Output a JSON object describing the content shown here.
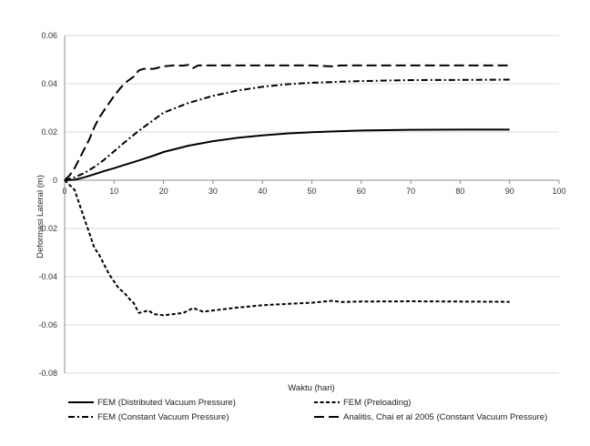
{
  "chart_data": {
    "type": "line",
    "title": "",
    "xlabel": "Waktu (hari)",
    "ylabel": "Deformasi Lateral (m)",
    "xlim": [
      0,
      100
    ],
    "ylim": [
      -0.08,
      0.06
    ],
    "x_ticks": [
      0,
      10,
      20,
      30,
      40,
      50,
      60,
      70,
      80,
      90,
      100
    ],
    "y_ticks": [
      -0.08,
      -0.06,
      -0.04,
      -0.02,
      0,
      0.02,
      0.04,
      0.06
    ],
    "x_tick_labels": [
      "0",
      "10",
      "20",
      "30",
      "40",
      "50",
      "60",
      "70",
      "80",
      "90",
      "100"
    ],
    "y_tick_labels": [
      "-0.08",
      "-0.06",
      "-0.04",
      "-0.02",
      "0",
      "0.02",
      "0.04",
      "0.06"
    ],
    "grid": "horizontal",
    "legend_position": "bottom",
    "series": [
      {
        "name": "FEM  (Distributed Vacuum Pressure)",
        "style": "solid",
        "points": [
          [
            0,
            0
          ],
          [
            2,
            0.0002
          ],
          [
            4,
            0.0012
          ],
          [
            6,
            0.0025
          ],
          [
            8,
            0.0038
          ],
          [
            10,
            0.005
          ],
          [
            12,
            0.0063
          ],
          [
            15,
            0.0082
          ],
          [
            18,
            0.0102
          ],
          [
            20,
            0.0117
          ],
          [
            25,
            0.0143
          ],
          [
            30,
            0.0162
          ],
          [
            35,
            0.0176
          ],
          [
            40,
            0.0186
          ],
          [
            45,
            0.0194
          ],
          [
            50,
            0.0199
          ],
          [
            55,
            0.0203
          ],
          [
            60,
            0.0206
          ],
          [
            70,
            0.0209
          ],
          [
            80,
            0.021
          ],
          [
            90,
            0.021
          ]
        ]
      },
      {
        "name": "FEM  (Preloading)",
        "style": "dashed",
        "points": [
          [
            0,
            0
          ],
          [
            2,
            -0.004
          ],
          [
            3,
            -0.01
          ],
          [
            4,
            -0.016
          ],
          [
            5,
            -0.022
          ],
          [
            6,
            -0.028
          ],
          [
            7,
            -0.031
          ],
          [
            8,
            -0.035
          ],
          [
            9,
            -0.039
          ],
          [
            10,
            -0.042
          ],
          [
            11,
            -0.045
          ],
          [
            12,
            -0.0465
          ],
          [
            13,
            -0.049
          ],
          [
            14,
            -0.051
          ],
          [
            15,
            -0.055
          ],
          [
            17,
            -0.054
          ],
          [
            18,
            -0.0555
          ],
          [
            20,
            -0.056
          ],
          [
            22,
            -0.0555
          ],
          [
            24,
            -0.055
          ],
          [
            26,
            -0.053
          ],
          [
            28,
            -0.0545
          ],
          [
            30,
            -0.054
          ],
          [
            35,
            -0.0528
          ],
          [
            40,
            -0.0518
          ],
          [
            45,
            -0.0513
          ],
          [
            50,
            -0.0508
          ],
          [
            54,
            -0.05
          ],
          [
            56,
            -0.0505
          ],
          [
            60,
            -0.0503
          ],
          [
            70,
            -0.0502
          ],
          [
            80,
            -0.0503
          ],
          [
            90,
            -0.0504
          ]
        ]
      },
      {
        "name": "FEM  (Constant Vacuum Pressure)",
        "style": "dash-dot",
        "points": [
          [
            0,
            0
          ],
          [
            2,
            0.0012
          ],
          [
            4,
            0.003
          ],
          [
            6,
            0.0055
          ],
          [
            8,
            0.0085
          ],
          [
            10,
            0.012
          ],
          [
            12,
            0.0155
          ],
          [
            15,
            0.0205
          ],
          [
            18,
            0.025
          ],
          [
            20,
            0.028
          ],
          [
            25,
            0.032
          ],
          [
            30,
            0.035
          ],
          [
            35,
            0.0372
          ],
          [
            40,
            0.0387
          ],
          [
            45,
            0.0398
          ],
          [
            50,
            0.0404
          ],
          [
            55,
            0.0408
          ],
          [
            60,
            0.0411
          ],
          [
            70,
            0.0415
          ],
          [
            80,
            0.0416
          ],
          [
            90,
            0.0417
          ]
        ]
      },
      {
        "name": "Analitis, Chai et al 2005  (Constant Vacuum Pressure)",
        "style": "long-dash",
        "points": [
          [
            0,
            0
          ],
          [
            1,
            0.002
          ],
          [
            2,
            0.005
          ],
          [
            3,
            0.009
          ],
          [
            4,
            0.013
          ],
          [
            5,
            0.017
          ],
          [
            6,
            0.022
          ],
          [
            7,
            0.026
          ],
          [
            8,
            0.029
          ],
          [
            9,
            0.032
          ],
          [
            10,
            0.035
          ],
          [
            11,
            0.0375
          ],
          [
            12,
            0.04
          ],
          [
            13,
            0.0415
          ],
          [
            14,
            0.043
          ],
          [
            15,
            0.0455
          ],
          [
            16,
            0.0462
          ],
          [
            18,
            0.0462
          ],
          [
            20,
            0.0472
          ],
          [
            22,
            0.0476
          ],
          [
            24,
            0.0475
          ],
          [
            25,
            0.0478
          ],
          [
            26,
            0.0465
          ],
          [
            27,
            0.0476
          ],
          [
            30,
            0.0476
          ],
          [
            40,
            0.0476
          ],
          [
            50,
            0.0476
          ],
          [
            54,
            0.0472
          ],
          [
            56,
            0.0476
          ],
          [
            60,
            0.0476
          ],
          [
            70,
            0.0476
          ],
          [
            80,
            0.0476
          ],
          [
            90,
            0.0476
          ]
        ]
      }
    ]
  }
}
